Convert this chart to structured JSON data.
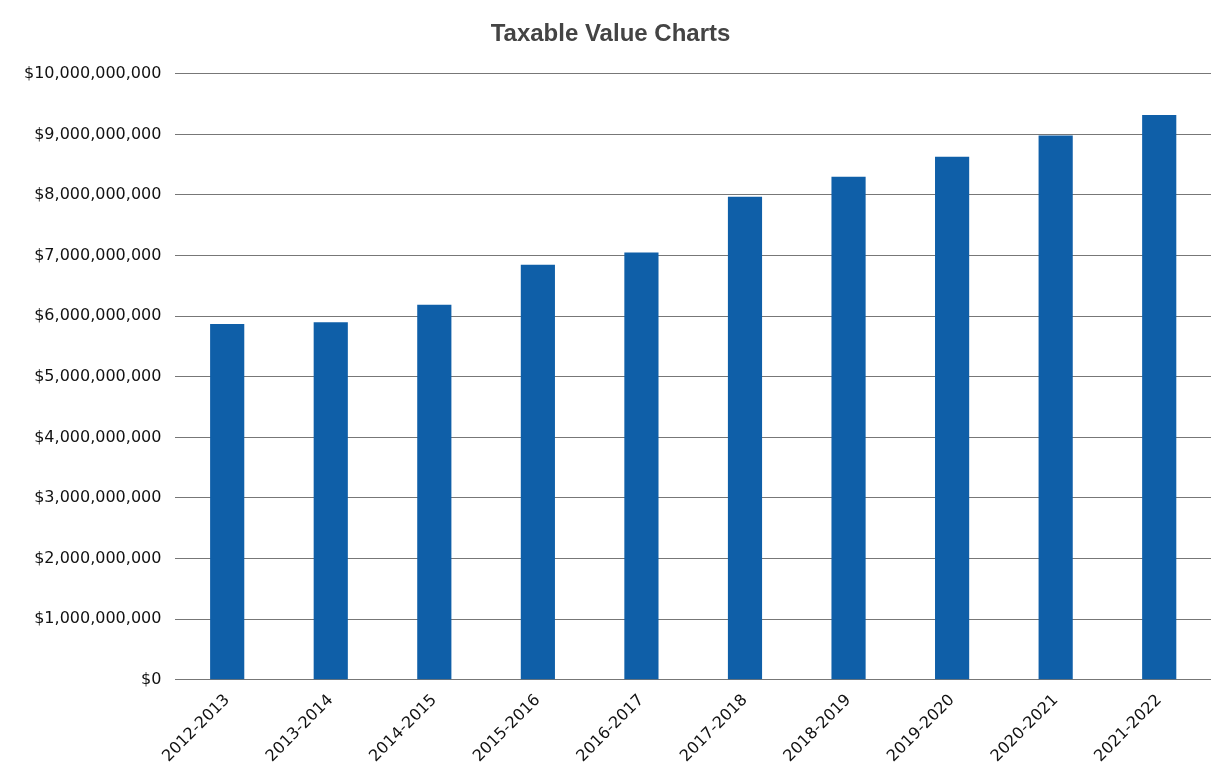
{
  "chart_data": {
    "type": "bar",
    "title": "Taxable Value Charts",
    "categories": [
      "2012-2013",
      "2013-2014",
      "2014-2015",
      "2015-2016",
      "2016-2017",
      "2017-2018",
      "2018-2019",
      "2019-2020",
      "2020-2021",
      "2021-2022"
    ],
    "values": [
      5870000000,
      5900000000,
      6190000000,
      6850000000,
      7050000000,
      7970000000,
      8300000000,
      8630000000,
      8980000000,
      9320000000
    ],
    "color": "#0f5fa8",
    "ylim": [
      0,
      10000000000
    ],
    "yticks": [
      {
        "value": 0,
        "label": "$0"
      },
      {
        "value": 1000000000,
        "label": "$1,000,000,000"
      },
      {
        "value": 2000000000,
        "label": "$2,000,000,000"
      },
      {
        "value": 3000000000,
        "label": "$3,000,000,000"
      },
      {
        "value": 4000000000,
        "label": "$4,000,000,000"
      },
      {
        "value": 5000000000,
        "label": "$5,000,000,000"
      },
      {
        "value": 6000000000,
        "label": "$6,000,000,000"
      },
      {
        "value": 7000000000,
        "label": "$7,000,000,000"
      },
      {
        "value": 8000000000,
        "label": "$8,000,000,000"
      },
      {
        "value": 9000000000,
        "label": "$9,000,000,000"
      },
      {
        "value": 10000000000,
        "label": "$10,000,000,000"
      }
    ],
    "grid": "y"
  }
}
